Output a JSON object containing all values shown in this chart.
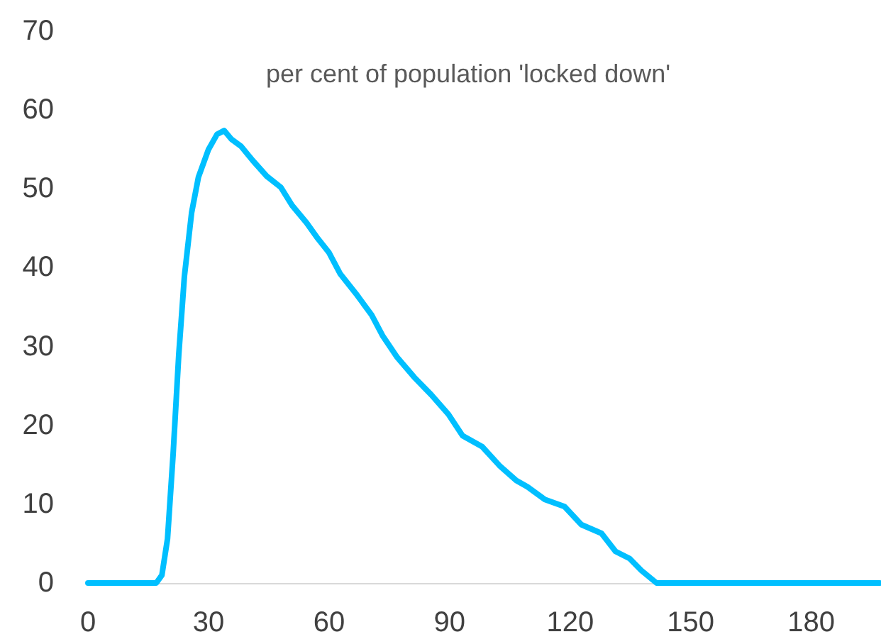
{
  "chart_data": {
    "type": "line",
    "title": "per cent of population 'locked down'",
    "x": [
      0,
      17,
      18.4,
      19.8,
      21.2,
      22.6,
      24,
      25.8,
      27.5,
      30,
      32.1,
      33.9,
      35.7,
      38.1,
      41,
      44.5,
      48,
      50.8,
      54.4,
      57.2,
      60,
      62.8,
      67,
      70.6,
      73.4,
      77,
      81.2,
      85.4,
      89.7,
      93.2,
      98.1,
      102.4,
      106.6,
      109.4,
      113.7,
      118.6,
      122.8,
      127.8,
      131.3,
      134.8,
      137.7,
      141.5,
      197
    ],
    "series": [
      {
        "color": "#00bfff",
        "values": [
          0,
          0,
          1,
          5.6,
          16.4,
          29,
          38.9,
          47,
          51.5,
          55,
          56.9,
          57.4,
          56.3,
          55.4,
          53.6,
          51.6,
          50.2,
          47.9,
          45.7,
          43.7,
          41.9,
          39.2,
          36.5,
          34,
          31.3,
          28.6,
          26.1,
          23.9,
          21.4,
          18.7,
          17.3,
          14.9,
          13,
          12.2,
          10.6,
          9.7,
          7.4,
          6.3,
          4,
          3.1,
          1.6,
          0,
          0
        ]
      }
    ],
    "xlim": [
      0,
      197
    ],
    "xticks": [
      0,
      30,
      60,
      90,
      120,
      150,
      180
    ],
    "ylim": [
      0,
      70
    ],
    "yticks": [
      0,
      10,
      20,
      30,
      40,
      50,
      60,
      70
    ],
    "grid": false,
    "marker": "none",
    "line_style": "solid"
  }
}
